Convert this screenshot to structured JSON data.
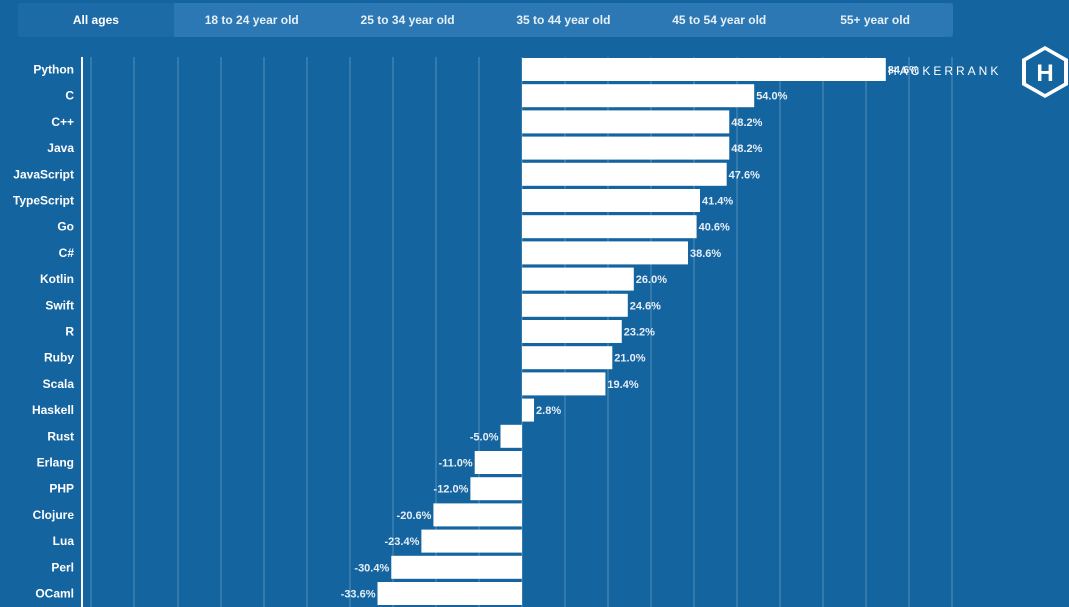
{
  "tabs": [
    {
      "label": "All ages",
      "active": true
    },
    {
      "label": "18 to 24 year old",
      "active": false
    },
    {
      "label": "25 to 34 year old",
      "active": false
    },
    {
      "label": "35 to 44 year old",
      "active": false
    },
    {
      "label": "45 to 54 year old",
      "active": false
    },
    {
      "label": "55+ year old",
      "active": false
    }
  ],
  "brand": {
    "name": "HACKERRANK",
    "logo_letter": "H"
  },
  "colors": {
    "background": "#1464a0",
    "bar": "#ffffff",
    "tab_bar": "#2b78b4"
  },
  "chart_data": {
    "type": "bar",
    "orientation": "horizontal",
    "categories": [
      "Python",
      "C",
      "C++",
      "Java",
      "JavaScript",
      "TypeScript",
      "Go",
      "C#",
      "Kotlin",
      "Swift",
      "R",
      "Ruby",
      "Scala",
      "Haskell",
      "Rust",
      "Erlang",
      "PHP",
      "Clojure",
      "Lua",
      "Perl",
      "OCaml"
    ],
    "values": [
      84.6,
      54.0,
      48.2,
      48.2,
      47.6,
      41.4,
      40.6,
      38.6,
      26.0,
      24.6,
      23.2,
      21.0,
      19.4,
      2.8,
      -5.0,
      -11.0,
      -12.0,
      -20.6,
      -23.4,
      -30.4,
      -33.6
    ],
    "labels": [
      "84.6%",
      "54.0%",
      "48.2%",
      "48.2%",
      "47.6%",
      "41.4%",
      "40.6%",
      "38.6%",
      "26.0%",
      "24.6%",
      "23.2%",
      "21.0%",
      "19.4%",
      "2.8%",
      "-5.0%",
      "-11.0%",
      "-12.0%",
      "-20.6%",
      "-23.4%",
      "-30.4%",
      "-33.6%"
    ],
    "xlim": [
      -100,
      100
    ],
    "grid": true,
    "legend": "none"
  }
}
